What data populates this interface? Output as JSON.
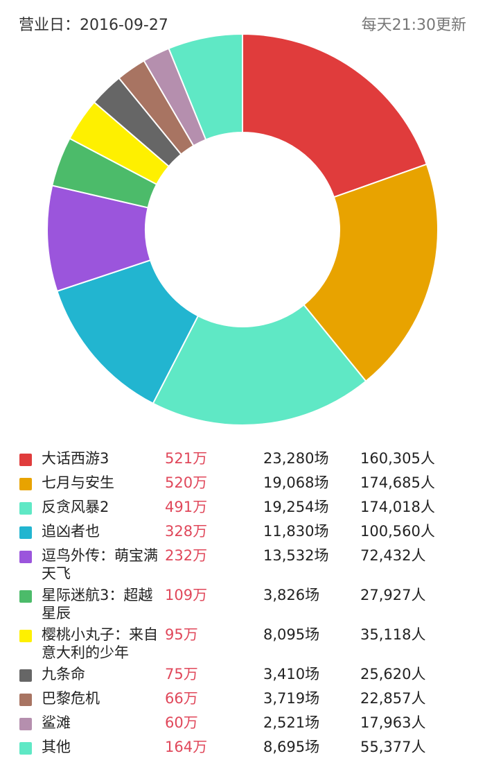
{
  "header": {
    "biz_date": "营业日：2016-09-27",
    "update_note": "每天21:30更新"
  },
  "chart_data": {
    "type": "pie",
    "categories": [
      "大话西游3",
      "七月与安生",
      "反贪风暴2",
      "追凶者也",
      "逗鸟外传：萌宝满天飞",
      "星际迷航3：超越星辰",
      "樱桃小丸子：来自意大利的少年",
      "九条命",
      "巴黎危机",
      "鲨滩",
      "其他"
    ],
    "values": [
      521,
      520,
      491,
      328,
      232,
      109,
      95,
      75,
      66,
      60,
      164
    ],
    "colors": [
      "#e03c3c",
      "#e8a300",
      "#5fe8c5",
      "#22b5d0",
      "#9b55dc",
      "#4cbb6a",
      "#fef000",
      "#666666",
      "#a87462",
      "#b58fae",
      "#5fe8c5"
    ]
  },
  "legend": [
    {
      "name": "大话西游3",
      "gross": "521万",
      "shows": "23,280场",
      "people": "160,305人"
    },
    {
      "name": "七月与安生",
      "gross": "520万",
      "shows": "19,068场",
      "people": "174,685人"
    },
    {
      "name": "反贪风暴2",
      "gross": "491万",
      "shows": "19,254场",
      "people": "174,018人"
    },
    {
      "name": "追凶者也",
      "gross": "328万",
      "shows": "11,830场",
      "people": "100,560人"
    },
    {
      "name": "逗鸟外传：萌宝满天飞",
      "gross": "232万",
      "shows": "13,532场",
      "people": "72,432人"
    },
    {
      "name": "星际迷航3：超越星辰",
      "gross": "109万",
      "shows": "3,826场",
      "people": "27,927人"
    },
    {
      "name": "樱桃小丸子：来自意大利的少年",
      "gross": "95万",
      "shows": "8,095场",
      "people": "35,118人"
    },
    {
      "name": "九条命",
      "gross": "75万",
      "shows": "3,410场",
      "people": "25,620人"
    },
    {
      "name": "巴黎危机",
      "gross": "66万",
      "shows": "3,719场",
      "people": "22,857人"
    },
    {
      "name": "鲨滩",
      "gross": "60万",
      "shows": "2,521场",
      "people": "17,963人"
    },
    {
      "name": "其他",
      "gross": "164万",
      "shows": "8,695场",
      "people": "55,377人"
    }
  ]
}
